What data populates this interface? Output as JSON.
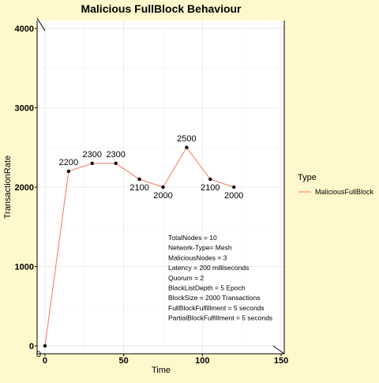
{
  "chart_data": {
    "type": "line",
    "title": "Malicious FullBlock Behaviour",
    "xlabel": "Time",
    "ylabel": "TransactionRate",
    "xlim": [
      -5,
      152
    ],
    "ylim": [
      -100,
      4100
    ],
    "xticks": [
      0,
      50,
      100,
      150
    ],
    "yticks": [
      0,
      1000,
      2000,
      3000,
      4000
    ],
    "grid": true,
    "legend_placement": "right",
    "legend_title": "Type",
    "series": [
      {
        "name": "MaliciousFullBlock",
        "color": "#f8766d",
        "x": [
          0,
          15,
          30,
          45,
          60,
          75,
          90,
          105,
          120
        ],
        "y": [
          0,
          2200,
          2300,
          2300,
          2100,
          2000,
          2500,
          2100,
          2000
        ],
        "labels": [
          "0",
          "2200",
          "2300",
          "2300",
          "2100",
          "2000",
          "2500",
          "2100",
          "2000"
        ]
      }
    ],
    "annotation_lines": [
      "TotalNodes = 10",
      "Network-Type= Mesh",
      "MaliciousNodes = 3",
      "Latency = 200 milliseconds",
      "Quorum = 2",
      "BlackListDepth = 5 Epoch",
      "BlockSize = 2000 Transactions",
      "FullBlockFulfillment = 5 seconds",
      "PartialBlockFulfillment = 5 seconds"
    ]
  }
}
